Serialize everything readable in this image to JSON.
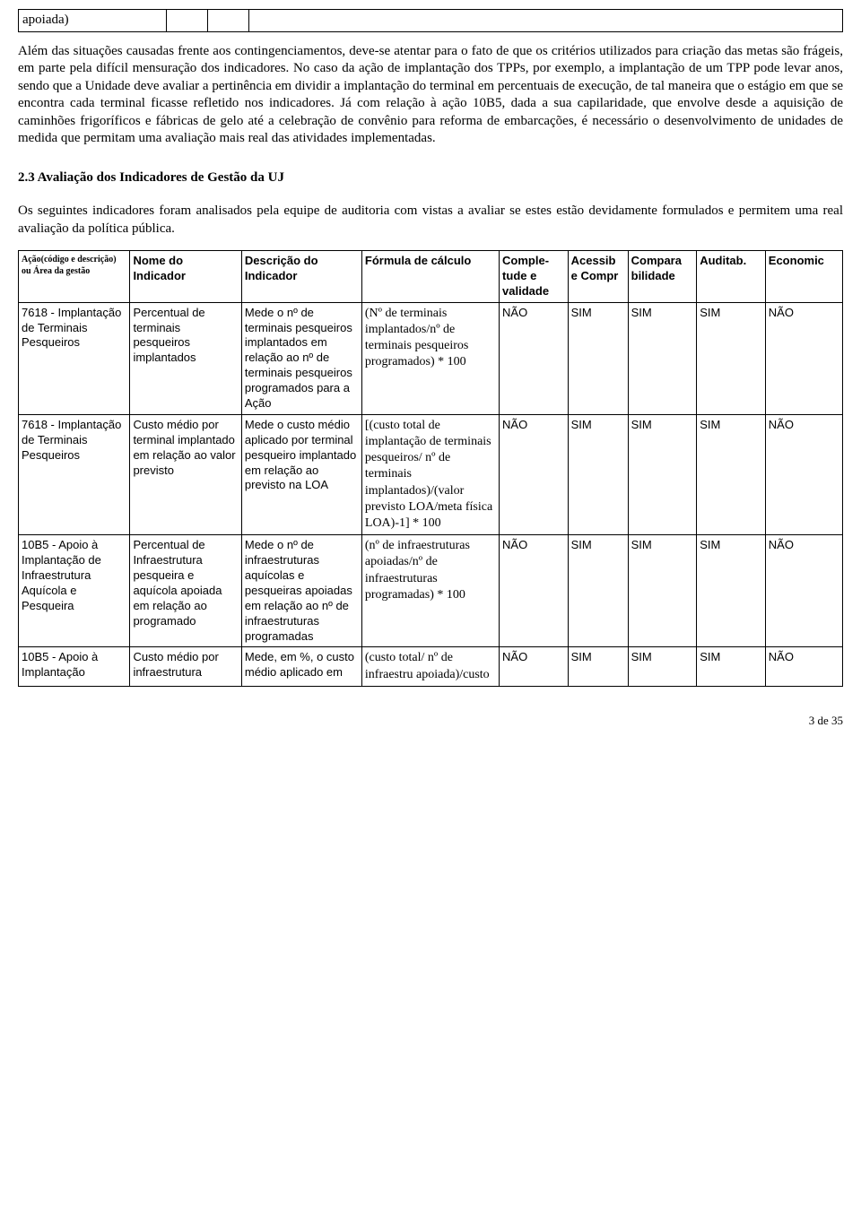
{
  "top_cell": "apoiada)",
  "paragraph1": "Além das situações causadas frente aos contingenciamentos, deve-se atentar para o fato de que os critérios utilizados para criação das metas são frágeis, em parte pela difícil mensuração dos indicadores. No caso da ação de implantação dos TPPs, por exemplo, a implantação de um TPP pode levar anos, sendo que a Unidade deve avaliar a pertinência em dividir a implantação do terminal em percentuais de execução, de tal maneira que o estágio em que se encontra cada terminal ficasse refletido nos indicadores. Já com relação à ação 10B5, dada a sua capilaridade, que envolve desde a aquisição de caminhões frigoríficos e fábricas de gelo até a celebração de convênio para reforma de embarcações, é necessário o desenvolvimento de unidades de medida que permitam uma avaliação mais real das atividades implementadas.",
  "section_heading": "2.3 Avaliação dos Indicadores de Gestão da UJ",
  "paragraph2": "Os seguintes indicadores foram analisados pela equipe de auditoria com vistas a avaliar se estes estão devidamente formulados e permitem uma real avaliação da política pública.",
  "headers": {
    "h1": "Ação(código e descrição) ou Área da gestão",
    "h2": "Nome do Indicador",
    "h3": "Descrição do Indicador",
    "h4": "Fórmula de cálculo",
    "h5": "Comple-tude e validade",
    "h6": "Acessib e Compr",
    "h7": "Compara bilidade",
    "h8": "Auditab.",
    "h9": "Economic"
  },
  "rows": [
    {
      "acao": "7618 - Implantação de Terminais Pesqueiros",
      "nome": "Percentual de terminais pesqueiros implantados",
      "desc": "Mede o nº de terminais pesqueiros implantados em relação ao nº de terminais pesqueiros programados para a Ação",
      "formula": "(Nº de terminais implantados/nº de terminais pesqueiros programados) * 100",
      "c5": "NÃO",
      "c6": "SIM",
      "c7": "SIM",
      "c8": "SIM",
      "c9": "NÃO"
    },
    {
      "acao": "7618 - Implantação de Terminais Pesqueiros",
      "nome": "Custo médio por terminal implantado em relação ao valor previsto",
      "desc": "Mede o custo médio aplicado por terminal pesqueiro implantado em relação ao previsto na LOA",
      "formula": "[(custo total de implantação de terminais pesqueiros/ nº de terminais implantados)/(valor previsto LOA/meta física LOA)-1] * 100",
      "c5": "NÃO",
      "c6": "SIM",
      "c7": "SIM",
      "c8": "SIM",
      "c9": "NÃO"
    },
    {
      "acao": "10B5 - Apoio à Implantação de Infraestrutura Aquícola e Pesqueira",
      "nome": "Percentual de Infraestrutura pesqueira e aquícola apoiada em relação ao programado",
      "desc": "Mede o nº de infraestruturas aquícolas e pesqueiras apoiadas em relação ao nº de infraestruturas programadas",
      "formula": "(nº de infraestruturas apoiadas/nº de infraestruturas programadas) * 100",
      "c5": "NÃO",
      "c6": "SIM",
      "c7": "SIM",
      "c8": "SIM",
      "c9": "NÃO"
    },
    {
      "acao": "10B5 - Apoio à Implantação",
      "nome": "Custo médio por infraestrutura",
      "desc": "Mede, em %, o custo médio aplicado em",
      "formula": "(custo total/ nº de infraestru apoiada)/custo",
      "c5": "NÃO",
      "c6": "SIM",
      "c7": "SIM",
      "c8": "SIM",
      "c9": "NÃO"
    }
  ],
  "footer": "3 de 35"
}
